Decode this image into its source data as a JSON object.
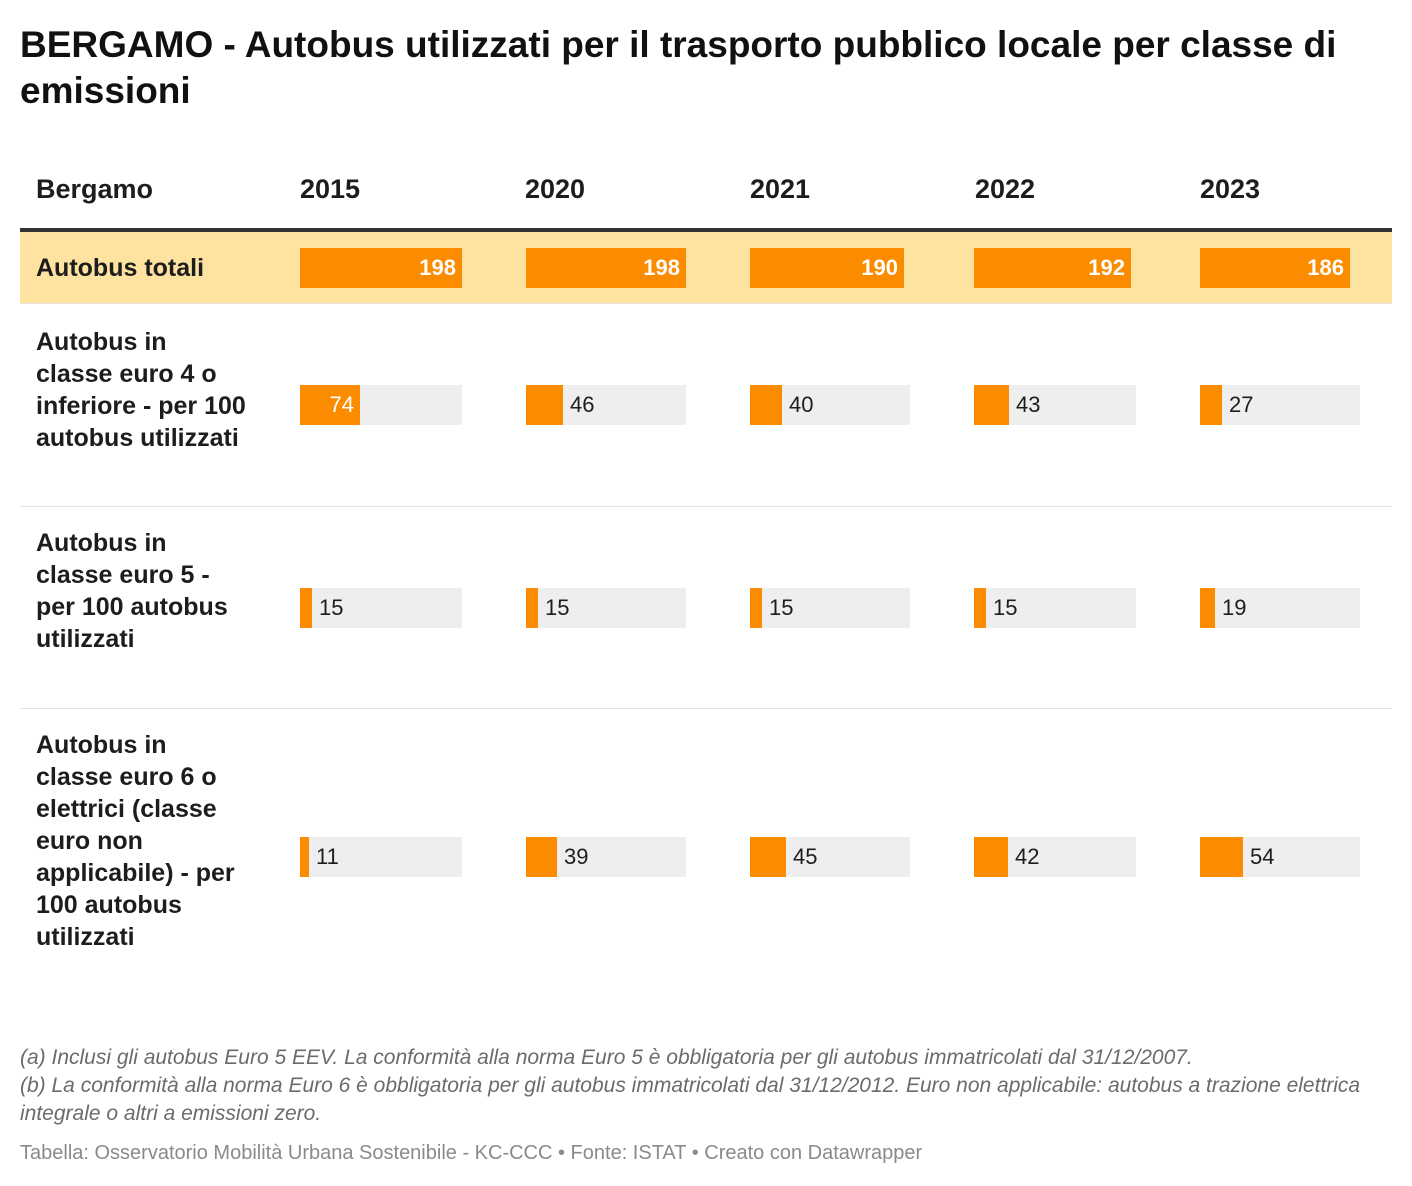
{
  "title": "BERGAMO - Autobus utilizzati per il trasporto pubblico locale per classe di emissioni",
  "colors": {
    "bar": "#fb8c00",
    "bar_bg": "#eeeeee",
    "highlight_row": "#fee3a0"
  },
  "chart_data": {
    "type": "table",
    "title": "BERGAMO - Autobus utilizzati per il trasporto pubblico locale per classe di emissioni",
    "row_header": "Bergamo",
    "columns": [
      "2015",
      "2020",
      "2021",
      "2022",
      "2023"
    ],
    "rows": [
      {
        "label": "Autobus totali",
        "values": [
          198,
          198,
          190,
          192,
          186
        ],
        "max": 198,
        "highlight": true
      },
      {
        "label": "Autobus in classe euro 4 o inferiore - per 100 autobus utilizzati",
        "values": [
          74,
          46,
          40,
          43,
          27
        ],
        "max": 200,
        "highlight": false
      },
      {
        "label": "Autobus in classe euro 5 - per 100 autobus utilizzati",
        "values": [
          15,
          15,
          15,
          15,
          19
        ],
        "max": 200,
        "highlight": false
      },
      {
        "label": "Autobus in classe euro 6 o elettrici (classe euro non applicabile) - per 100 autobus utilizzati",
        "values": [
          11,
          39,
          45,
          42,
          54
        ],
        "max": 200,
        "highlight": false
      }
    ]
  },
  "notes": [
    "(a) Inclusi gli autobus Euro 5 EEV. La conformità alla norma Euro 5 è obbligatoria per gli autobus immatricolati dal 31/12/2007.",
    "(b) La conformità alla norma Euro 6 è obbligatoria per gli autobus immatricolati dal 31/12/2012. Euro non applicabile: autobus a trazione elettrica integrale o altri a emissioni zero."
  ],
  "footer": "Tabella: Osservatorio Mobilità Urbana Sostenibile - KC-CCC • Fonte: ISTAT • Creato con Datawrapper"
}
